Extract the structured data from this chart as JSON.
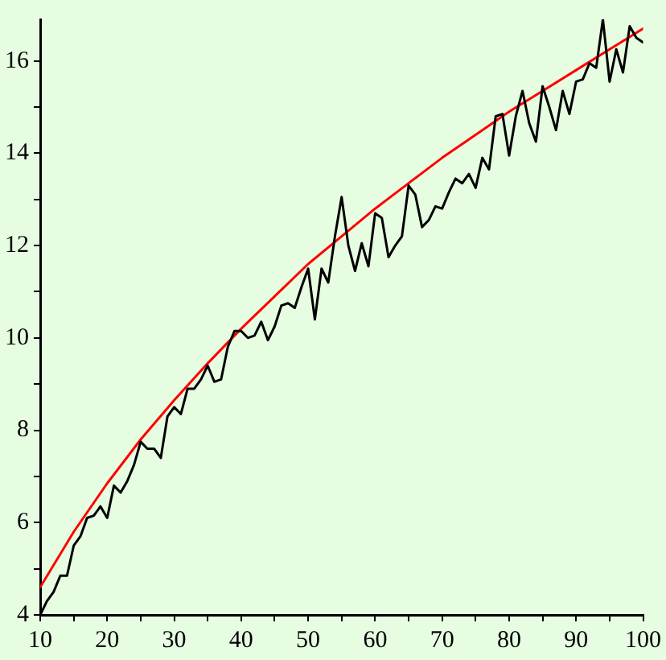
{
  "chart_data": {
    "type": "line",
    "x": [
      10,
      11,
      12,
      13,
      14,
      15,
      16,
      17,
      18,
      19,
      20,
      21,
      22,
      23,
      24,
      25,
      26,
      27,
      28,
      29,
      30,
      31,
      32,
      33,
      34,
      35,
      36,
      37,
      38,
      39,
      40,
      41,
      42,
      43,
      44,
      45,
      46,
      47,
      48,
      49,
      50,
      51,
      52,
      53,
      54,
      55,
      56,
      57,
      58,
      59,
      60,
      61,
      62,
      63,
      64,
      65,
      66,
      67,
      68,
      69,
      70,
      71,
      72,
      73,
      74,
      75,
      76,
      77,
      78,
      79,
      80,
      81,
      82,
      83,
      84,
      85,
      86,
      87,
      88,
      89,
      90,
      91,
      92,
      93,
      94,
      95,
      96,
      97,
      98,
      99,
      100
    ],
    "series": [
      {
        "color": "#000000",
        "values": [
          4.0,
          4.3,
          4.5,
          4.85,
          4.85,
          5.5,
          5.7,
          6.1,
          6.15,
          6.35,
          6.1,
          6.8,
          6.65,
          6.9,
          7.25,
          7.75,
          7.6,
          7.6,
          7.4,
          8.3,
          8.5,
          8.35,
          8.9,
          8.9,
          9.1,
          9.4,
          9.05,
          9.1,
          9.8,
          10.15,
          10.15,
          10.0,
          10.05,
          10.35,
          9.95,
          10.25,
          10.7,
          10.75,
          10.65,
          11.1,
          11.5,
          10.4,
          11.5,
          11.2,
          12.2,
          13.05,
          12.0,
          11.45,
          12.05,
          11.55,
          12.7,
          12.6,
          11.75,
          12.0,
          12.2,
          13.3,
          13.1,
          12.4,
          12.55,
          12.85,
          12.8,
          13.15,
          13.45,
          13.35,
          13.55,
          13.25,
          13.9,
          13.65,
          14.8,
          14.85,
          13.95,
          14.8,
          15.35,
          14.65,
          14.25,
          15.45,
          15.0,
          14.5,
          15.35,
          14.85,
          15.55,
          15.6,
          15.95,
          15.85,
          16.9,
          15.55,
          16.25,
          15.75,
          16.75,
          16.5,
          16.4
        ]
      },
      {
        "type": "line",
        "color": "#ff0000",
        "x": [
          10,
          15,
          20,
          25,
          30,
          35,
          40,
          45,
          50,
          55,
          60,
          65,
          70,
          75,
          80,
          85,
          90,
          95,
          100
        ],
        "values": [
          4.6,
          5.8,
          6.85,
          7.8,
          8.65,
          9.45,
          10.2,
          10.9,
          11.6,
          12.2,
          12.8,
          13.35,
          13.9,
          14.4,
          14.9,
          15.35,
          15.8,
          16.25,
          16.7
        ]
      }
    ],
    "xlim": [
      10,
      100
    ],
    "xticks": [
      10,
      {
        "value": 15,
        "label": null
      },
      20,
      {
        "value": 25,
        "label": null
      },
      30,
      {
        "value": 35,
        "label": null
      },
      40,
      {
        "value": 45,
        "label": null
      },
      50,
      {
        "value": 55,
        "label": null
      },
      60,
      {
        "value": 65,
        "label": null
      },
      70,
      {
        "value": 75,
        "label": null
      },
      80,
      {
        "value": 85,
        "label": null
      },
      90,
      {
        "value": 95,
        "label": null
      },
      100
    ],
    "ylim": [
      4,
      16.9
    ],
    "yticks": [
      4,
      {
        "value": 5,
        "label": null
      },
      6,
      {
        "value": 7,
        "label": null
      },
      8,
      {
        "value": 9,
        "label": null
      },
      10,
      {
        "value": 11,
        "label": null
      },
      12,
      {
        "value": 13,
        "label": null
      },
      14,
      {
        "value": 15,
        "label": null
      },
      16
    ],
    "grid": false,
    "legend": false,
    "marker": "none"
  }
}
